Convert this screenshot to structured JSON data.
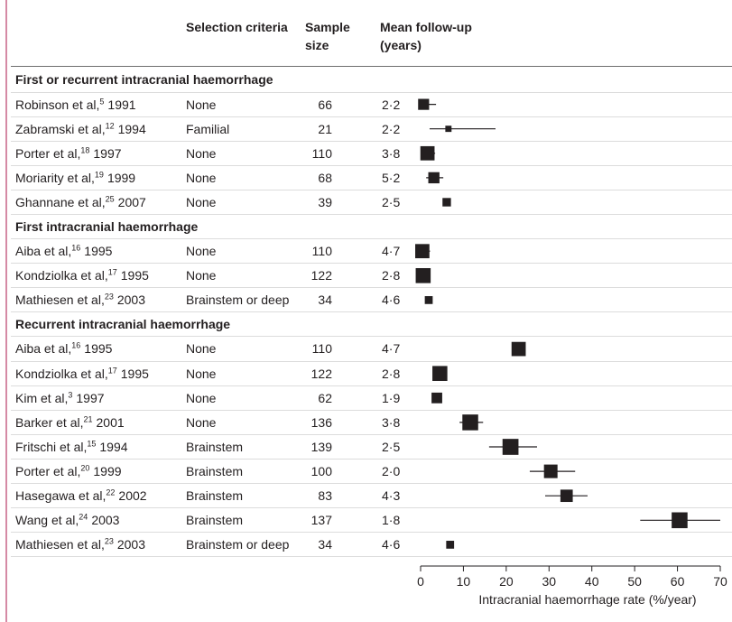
{
  "header": {
    "selection_criteria": "Selection criteria",
    "sample_size": "Sample\nsize",
    "mean_follow_up": "Mean follow-up\n(years)"
  },
  "chart_data": {
    "type": "scatter",
    "xlabel": "Intracranial haemorrhage rate (%/year)",
    "xlim": [
      0,
      70
    ],
    "xticks": [
      0,
      10,
      20,
      30,
      40,
      50,
      60,
      70
    ],
    "grid": false,
    "groups": [
      {
        "title": "First or recurrent intracranial haemorrhage",
        "rows": [
          {
            "study": "Robinson et al,",
            "ref": "5",
            "year": "1991",
            "selection": "None",
            "sample_size": 66,
            "follow_up": "2·2",
            "rate": 0.7,
            "ci": [
              0.1,
              3.6
            ]
          },
          {
            "study": "Zabramski et al,",
            "ref": "12",
            "year": "1994",
            "selection": "Familial",
            "sample_size": 21,
            "follow_up": "2·2",
            "rate": 6.5,
            "ci": [
              2.1,
              17.5
            ]
          },
          {
            "study": "Porter et al,",
            "ref": "18",
            "year": "1997",
            "selection": "None",
            "sample_size": 110,
            "follow_up": "3·8",
            "rate": 1.6,
            "ci": [
              0.2,
              3.4
            ]
          },
          {
            "study": "Moriarity et al,",
            "ref": "19",
            "year": "1999",
            "selection": "None",
            "sample_size": 68,
            "follow_up": "5·2",
            "rate": 3.1,
            "ci": [
              1.3,
              5.3
            ]
          },
          {
            "study": "Ghannane et al,",
            "ref": "25",
            "year": "2007",
            "selection": "None",
            "sample_size": 39,
            "follow_up": "2·5",
            "rate": 6.1
          }
        ]
      },
      {
        "title": "First intracranial haemorrhage",
        "rows": [
          {
            "study": "Aiba et al,",
            "ref": "16",
            "year": "1995",
            "selection": "None",
            "sample_size": 110,
            "follow_up": "4·7",
            "rate": 0.4,
            "ci": [
              0.0,
              2.2
            ]
          },
          {
            "study": "Kondziolka et al,",
            "ref": "17",
            "year": "1995",
            "selection": "None",
            "sample_size": 122,
            "follow_up": "2·8",
            "rate": 0.6
          },
          {
            "study": "Mathiesen et al,",
            "ref": "23",
            "year": "2003",
            "selection": "Brainstem or deep",
            "sample_size": 34,
            "follow_up": "4·6",
            "rate": 1.9
          }
        ]
      },
      {
        "title": "Recurrent intracranial haemorrhage",
        "rows": [
          {
            "study": "Aiba et al,",
            "ref": "16",
            "year": "1995",
            "selection": "None",
            "sample_size": 110,
            "follow_up": "4·7",
            "rate": 22.9
          },
          {
            "study": "Kondziolka et al,",
            "ref": "17",
            "year": "1995",
            "selection": "None",
            "sample_size": 122,
            "follow_up": "2·8",
            "rate": 4.5
          },
          {
            "study": "Kim et al,",
            "ref": "3",
            "year": "1997",
            "selection": "None",
            "sample_size": 62,
            "follow_up": "1·9",
            "rate": 3.8
          },
          {
            "study": "Barker et al,",
            "ref": "21",
            "year": "2001",
            "selection": "None",
            "sample_size": 136,
            "follow_up": "3·8",
            "rate": 11.6,
            "ci": [
              9.1,
              14.6
            ]
          },
          {
            "study": "Fritschi et al,",
            "ref": "15",
            "year": "1994",
            "selection": "Brainstem",
            "sample_size": 139,
            "follow_up": "2·5",
            "rate": 21.0,
            "ci": [
              16.0,
              27.2
            ]
          },
          {
            "study": "Porter et al,",
            "ref": "20",
            "year": "1999",
            "selection": "Brainstem",
            "sample_size": 100,
            "follow_up": "2·0",
            "rate": 30.4,
            "ci": [
              25.5,
              36.1
            ]
          },
          {
            "study": "Hasegawa et al,",
            "ref": "22",
            "year": "2002",
            "selection": "Brainstem",
            "sample_size": 83,
            "follow_up": "4·3",
            "rate": 34.1,
            "ci": [
              29.1,
              39.0
            ]
          },
          {
            "study": "Wang et al,",
            "ref": "24",
            "year": "2003",
            "selection": "Brainstem",
            "sample_size": 137,
            "follow_up": "1·8",
            "rate": 60.5,
            "ci": [
              51.3,
              70.0
            ]
          },
          {
            "study": "Mathiesen et al,",
            "ref": "23",
            "year": "2003",
            "selection": "Brainstem or deep",
            "sample_size": 34,
            "follow_up": "4·6",
            "rate": 6.9
          }
        ]
      }
    ]
  }
}
